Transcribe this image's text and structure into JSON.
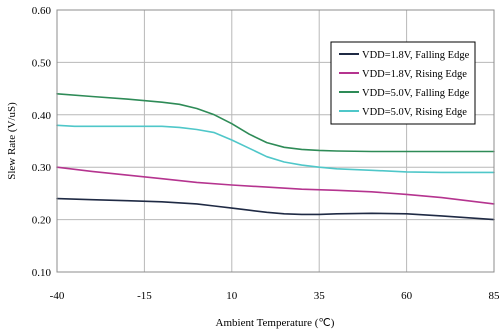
{
  "chart_data": {
    "type": "line",
    "xlabel": "Ambient Temperature (℃)",
    "ylabel": "Slew Rate (V/uS)",
    "xlim": [
      -40,
      85
    ],
    "ylim": [
      0.1,
      0.6
    ],
    "xticks": [
      -40,
      -15,
      10,
      35,
      60,
      85
    ],
    "yticks": [
      0.1,
      0.2,
      0.3,
      0.4,
      0.5,
      0.6
    ],
    "xtick_labels": [
      "-40",
      "-15",
      "10",
      "35",
      "60",
      "85"
    ],
    "ytick_labels": [
      "0.10",
      "0.20",
      "0.30",
      "0.40",
      "0.50",
      "0.60"
    ],
    "grid": true,
    "legend_position": "top-right",
    "series": [
      {
        "name": "VDD=1.8V, Falling Edge",
        "color": "#1f2a44",
        "x": [
          -40,
          -30,
          -20,
          -10,
          0,
          5,
          10,
          15,
          20,
          25,
          30,
          35,
          40,
          50,
          60,
          70,
          85
        ],
        "y": [
          0.24,
          0.238,
          0.236,
          0.234,
          0.23,
          0.226,
          0.222,
          0.218,
          0.214,
          0.211,
          0.21,
          0.21,
          0.211,
          0.212,
          0.211,
          0.207,
          0.2
        ]
      },
      {
        "name": "VDD=1.8V, Rising Edge",
        "color": "#b5348f",
        "x": [
          -40,
          -30,
          -20,
          -10,
          0,
          10,
          20,
          30,
          40,
          50,
          60,
          70,
          85
        ],
        "y": [
          0.3,
          0.292,
          0.285,
          0.278,
          0.271,
          0.266,
          0.262,
          0.258,
          0.256,
          0.253,
          0.248,
          0.242,
          0.23
        ]
      },
      {
        "name": "VDD=5.0V, Falling Edge",
        "color": "#2e8b57",
        "x": [
          -40,
          -30,
          -20,
          -10,
          -5,
          0,
          5,
          10,
          15,
          20,
          25,
          30,
          35,
          40,
          50,
          60,
          70,
          85
        ],
        "y": [
          0.44,
          0.435,
          0.43,
          0.424,
          0.42,
          0.412,
          0.4,
          0.383,
          0.363,
          0.347,
          0.338,
          0.334,
          0.332,
          0.331,
          0.33,
          0.33,
          0.33,
          0.33
        ]
      },
      {
        "name": "VDD=5.0V, Rising Edge",
        "color": "#4fc7c9",
        "x": [
          -40,
          -35,
          -30,
          -20,
          -10,
          -5,
          0,
          5,
          10,
          15,
          20,
          25,
          30,
          35,
          40,
          50,
          60,
          70,
          85
        ],
        "y": [
          0.38,
          0.378,
          0.378,
          0.378,
          0.378,
          0.376,
          0.372,
          0.366,
          0.352,
          0.336,
          0.32,
          0.31,
          0.304,
          0.3,
          0.297,
          0.294,
          0.291,
          0.29,
          0.29
        ]
      }
    ]
  }
}
